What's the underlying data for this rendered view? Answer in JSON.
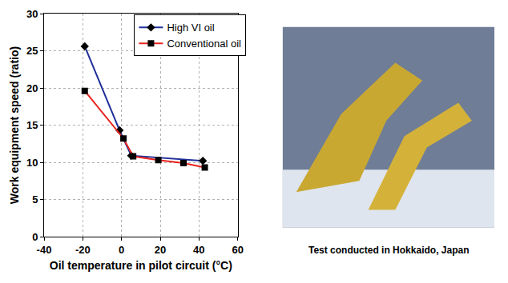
{
  "chart_data": {
    "type": "line",
    "xlabel": "Oil temperature in pilot circuit (°C)",
    "ylabel": "Work equipment speed (ratio)",
    "series": [
      {
        "name": "High VI oil",
        "color": "#1f2f9a",
        "marker": "diamond",
        "x": [
          -19,
          -1,
          5,
          42
        ],
        "values": [
          25.6,
          14.3,
          10.9,
          10.2
        ]
      },
      {
        "name": "Conventional oil",
        "color": "#e8231e",
        "marker": "square",
        "x": [
          -19,
          1,
          6,
          19,
          32,
          43
        ],
        "values": [
          19.6,
          13.2,
          10.8,
          10.3,
          9.9,
          9.3
        ]
      }
    ],
    "xlim": [
      -40,
      60
    ],
    "xticks": [
      -40,
      -20,
      0,
      20,
      40,
      60
    ],
    "ylim": [
      0,
      30
    ],
    "yticks": [
      0,
      5,
      10,
      15,
      20,
      25,
      30
    ],
    "grid": true,
    "legend": "upper right",
    "annotations": [
      "Test conducted in Hokkaido, Japan"
    ]
  }
}
